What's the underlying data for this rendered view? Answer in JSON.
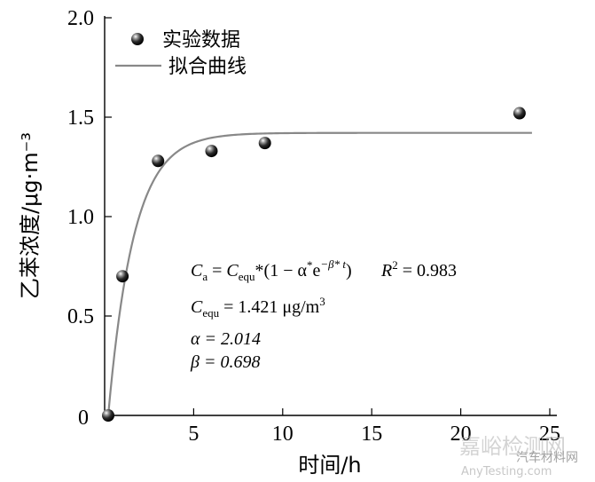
{
  "chart_data": {
    "type": "scatter",
    "xlabel": "时间/h",
    "ylabel": "乙苯浓度/μg·m⁻³",
    "xlim": [
      0,
      25
    ],
    "ylim": [
      0,
      2.0
    ],
    "x_ticks": [
      "5",
      "10",
      "15",
      "20",
      "25"
    ],
    "x_origin_label": "0",
    "y_ticks": [
      "0.5",
      "1.0",
      "1.5",
      "2.0"
    ],
    "grid": false,
    "legend_position": "top-left",
    "series": [
      {
        "name": "实验数据",
        "kind": "scatter",
        "marker_color": "#000000",
        "x": [
          0.2,
          1.0,
          3.0,
          6.0,
          9.0,
          23.3
        ],
        "y": [
          0.0,
          0.7,
          1.28,
          1.33,
          1.37,
          1.52
        ]
      },
      {
        "name": "拟合曲线",
        "kind": "line",
        "line_color": "#888888",
        "model": "Ca = Cequ*(1 - alpha*exp(-beta*t))",
        "params": {
          "Cequ": 1.421,
          "alpha": 2.014,
          "beta": 0.698
        },
        "x_range": [
          0.2,
          24
        ]
      }
    ],
    "annotations": {
      "eq_lhs": "C",
      "eq_lhs_sub": "a",
      "eq_eq": " = ",
      "eq_C": "C",
      "eq_C_sub": "equ",
      "eq_body": "*(1 − α",
      "eq_star": "*",
      "eq_e": "e",
      "eq_exp": "−β* t",
      "eq_close": ")",
      "r2_label": "R",
      "r2_sup": "2",
      "r2_value": " = 0.983",
      "cequ_label": "C",
      "cequ_sub": "equ",
      "cequ_value": " = 1.421 μg/m",
      "cequ_unit_sup": "3",
      "alpha_line": "α = 2.014",
      "beta_line": "β = 0.698"
    }
  },
  "watermark": {
    "brand_cn": "嘉峪检测网",
    "brand_en": "AnyTesting.com",
    "account": "汽车材料网"
  }
}
